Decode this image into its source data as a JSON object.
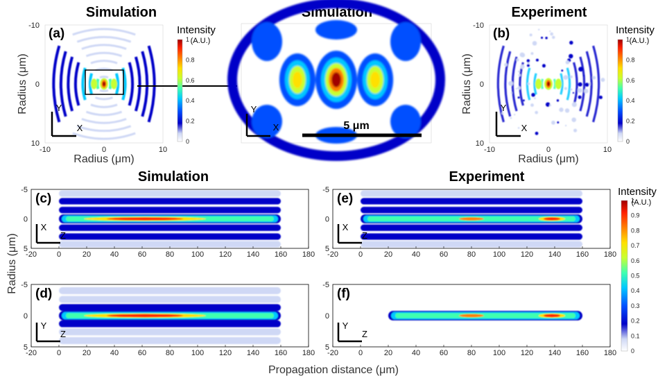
{
  "colors": {
    "jet": [
      "#ffffff",
      "#cfd8f5",
      "#0000c8",
      "#0050ff",
      "#00c8ff",
      "#40ffb0",
      "#c8ff30",
      "#ffe000",
      "#ff8000",
      "#ff2000",
      "#a00000"
    ]
  },
  "headers": {
    "top_left": "Simulation",
    "top_mid": "Simulation",
    "top_right": "Experiment",
    "bot_left": "Simulation",
    "bot_right": "Experiment"
  },
  "panel_labels": {
    "a": "(a)",
    "b": "(b)",
    "c": "(c)",
    "d": "(d)",
    "e": "(e)",
    "f": "(f)"
  },
  "axis_labels": {
    "radius_um": "Radius (μm)",
    "propagation": "Propagation distance (μm)"
  },
  "ticks": {
    "r10": [
      "-10",
      "0",
      "10"
    ],
    "r5": [
      "-5",
      "0",
      "5"
    ],
    "z": [
      "-20",
      "0",
      "20",
      "40",
      "60",
      "80",
      "100",
      "120",
      "140",
      "160",
      "180"
    ]
  },
  "inset_dirs": {
    "x": "X",
    "y": "Y",
    "z": "Z"
  },
  "scale_bar": "5 μm",
  "colorbar": {
    "title": "Intensity",
    "unit": "(A.U.)",
    "ticks_small": [
      "1",
      "0.8",
      "0.6",
      "0.4",
      "0.2",
      "0"
    ],
    "ticks_large": [
      "1",
      "0.9",
      "0.8",
      "0.7",
      "0.6",
      "0.5",
      "0.4",
      "0.3",
      "0.2",
      "0.1",
      "0"
    ]
  },
  "chart_data": [
    {
      "type": "heatmap",
      "panel": "(a)",
      "title": "Simulation",
      "xlabel": "Radius (μm)",
      "ylabel": "Radius (μm)",
      "xlim": [
        -10,
        10
      ],
      "ylim": [
        10,
        -10
      ],
      "zlabel": "Intensity (A.U.)",
      "zlim": [
        0,
        1
      ],
      "peak_center": [
        0,
        0
      ],
      "rings_x_um": [
        1.0,
        2.1,
        3.2,
        4.3,
        5.4,
        6.5,
        7.6
      ]
    },
    {
      "type": "heatmap",
      "panel": "zoom",
      "title": "Simulation",
      "scale_bar_um": 5,
      "lobes": [
        {
          "x": -1.7,
          "peak": 0.6
        },
        {
          "x": 0,
          "peak": 1.0
        },
        {
          "x": 1.7,
          "peak": 0.6
        }
      ]
    },
    {
      "type": "heatmap",
      "panel": "(b)",
      "title": "Experiment",
      "xlabel": "Radius (μm)",
      "ylabel": "Radius (μm)",
      "xlim": [
        -10,
        10
      ],
      "ylim": [
        10,
        -10
      ],
      "zlabel": "Intensity (A.U.)",
      "zlim": [
        0,
        1
      ],
      "peak_center": [
        0,
        0
      ]
    },
    {
      "type": "heatmap",
      "panel": "(c)",
      "title": "Simulation",
      "plane": "XZ",
      "xlabel": "Propagation distance (μm)",
      "ylabel": "Radius (μm)",
      "xlim": [
        -20,
        180
      ],
      "ylim": [
        5,
        -5
      ],
      "bands": [
        {
          "r": 0,
          "peak": 1.0
        },
        {
          "r": -1.5,
          "peak": 0.3
        },
        {
          "r": 1.5,
          "peak": 0.3
        },
        {
          "r": -3,
          "peak": 0.12
        },
        {
          "r": 3,
          "peak": 0.12
        },
        {
          "r": -4.3,
          "peak": 0.05
        },
        {
          "r": 4.3,
          "peak": 0.05
        }
      ],
      "z_range": [
        0,
        160
      ],
      "peak_z": 62
    },
    {
      "type": "heatmap",
      "panel": "(d)",
      "title": "Simulation",
      "plane": "YZ",
      "xlabel": "Propagation distance (μm)",
      "ylabel": "Radius (μm)",
      "xlim": [
        -20,
        180
      ],
      "ylim": [
        5,
        -5
      ],
      "bands": [
        {
          "r": 0,
          "peak": 1.0
        },
        {
          "r": -1.3,
          "peak": 0.2
        },
        {
          "r": 1.3,
          "peak": 0.2
        },
        {
          "r": -2.6,
          "peak": 0.06
        },
        {
          "r": 2.6,
          "peak": 0.06
        },
        {
          "r": -4,
          "peak": 0.03
        },
        {
          "r": 4,
          "peak": 0.03
        }
      ],
      "z_range": [
        0,
        160
      ],
      "peak_z": 62
    },
    {
      "type": "heatmap",
      "panel": "(e)",
      "title": "Experiment",
      "plane": "XZ",
      "xlabel": "Propagation distance (μm)",
      "ylabel": "Radius (μm)",
      "xlim": [
        -20,
        180
      ],
      "ylim": [
        5,
        -5
      ],
      "bands": [
        {
          "r": 0,
          "peak": 0.9
        },
        {
          "r": -1.5,
          "peak": 0.35
        },
        {
          "r": 1.5,
          "peak": 0.3
        },
        {
          "r": -3,
          "peak": 0.15
        },
        {
          "r": 3,
          "peak": 0.15
        },
        {
          "r": -4.3,
          "peak": 0.06
        },
        {
          "r": 4.3,
          "peak": 0.06
        }
      ],
      "z_range": [
        0,
        160
      ],
      "peak_z": 138
    },
    {
      "type": "heatmap",
      "panel": "(f)",
      "title": "Experiment",
      "plane": "YZ",
      "xlabel": "Propagation distance (μm)",
      "ylabel": "Radius (μm)",
      "xlim": [
        -20,
        180
      ],
      "ylim": [
        5,
        -5
      ],
      "bands": [
        {
          "r": 0,
          "peak": 0.95
        }
      ],
      "z_range": [
        20,
        160
      ],
      "peak_z": 138
    }
  ]
}
